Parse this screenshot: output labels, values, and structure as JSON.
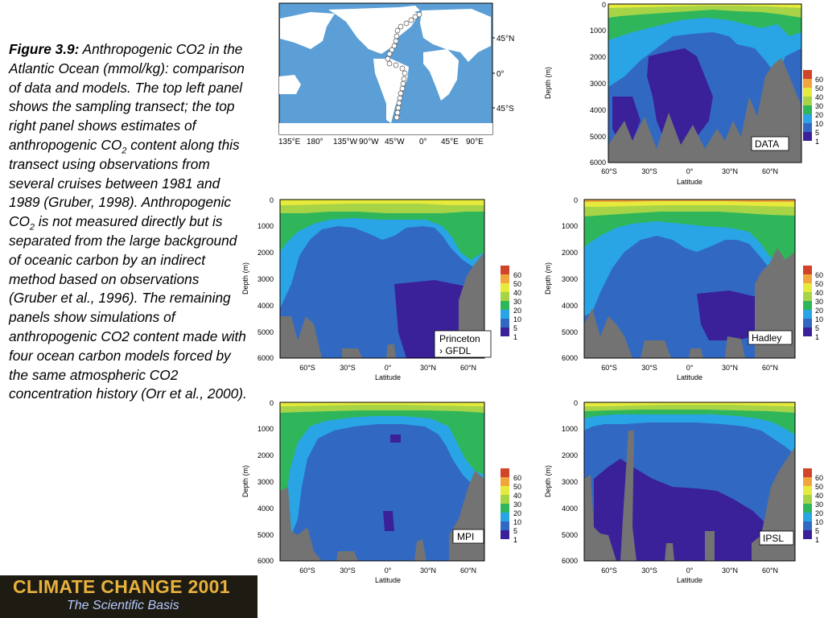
{
  "caption": {
    "title": "Figure 3.9:",
    "line1_rest": " Anthropogenic CO2 in the Atlantic Ocean (mmol/kg): comparison of data and models. The top left panel shows the sampling transect; the top right panel shows estimates of anthropogenic CO",
    "sub1": "2",
    "line2": " content along this transect using observations from several cruises between 1981 and 1989 (Gruber, 1998). Anthropogenic CO",
    "sub2": "2",
    "line3": " is not measured directly but is separated from the large background of oceanic carbon by an indirect method based on observations (Gruber et al., 1996). The remaining panels show simulations of anthropogenic CO2 content made with four ocean carbon models forced by the same atmospheric CO2 concentration history (Orr et al., 2000)."
  },
  "map": {
    "lat_labels": [
      "45°N",
      "0°",
      "45°S"
    ],
    "lon_labels": [
      "135°E",
      "180°",
      "135°W",
      "90°W",
      "45°W",
      "0°",
      "45°E",
      "90°E"
    ]
  },
  "axes": {
    "depth_label": "Depth (m)",
    "lat_label": "Latitude",
    "depth_ticks": [
      "0",
      "1000",
      "2000",
      "3000",
      "4000",
      "5000",
      "6000"
    ],
    "lat_ticks": [
      "60°S",
      "30°S",
      "0°",
      "30°N",
      "60°N"
    ]
  },
  "legend": {
    "levels": [
      "60",
      "50",
      "40",
      "30",
      "20",
      "10",
      "5",
      "1"
    ],
    "colors": [
      "#d2442a",
      "#f0a63c",
      "#e6ea3c",
      "#a7d347",
      "#2fb65a",
      "#29a5e6",
      "#3169c2",
      "#3a219a"
    ]
  },
  "panels": [
    {
      "id": "data",
      "label": "DATA"
    },
    {
      "id": "princeton",
      "label_l1": "Princeton",
      "label_l2": "› GFDL"
    },
    {
      "id": "hadley",
      "label": "Hadley"
    },
    {
      "id": "mpi",
      "label": "MPI"
    },
    {
      "id": "ipsl",
      "label": "IPSL"
    }
  ],
  "logo": {
    "line1": "CLIMATE CHANGE 2001",
    "line2": "The Scientific Basis"
  }
}
